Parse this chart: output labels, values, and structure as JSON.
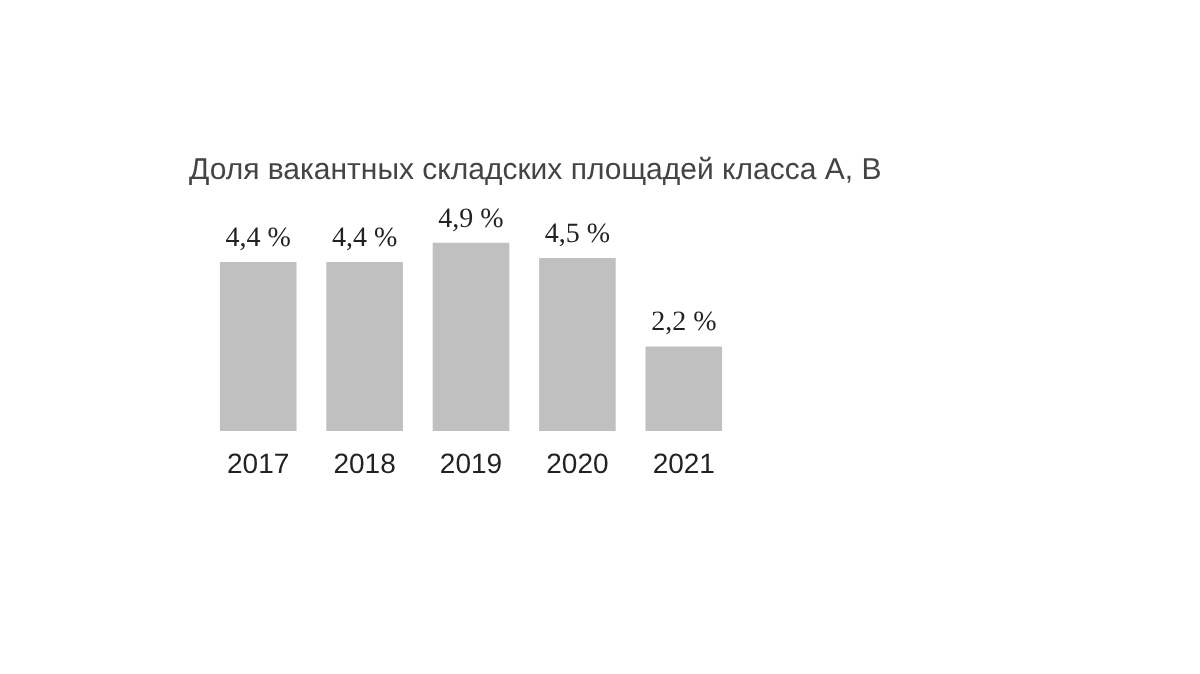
{
  "chart_data": {
    "type": "bar",
    "title": "Доля вакантных складских площадей класса А, В",
    "categories": [
      "2017",
      "2018",
      "2019",
      "2020",
      "2021"
    ],
    "values": [
      4.4,
      4.4,
      4.9,
      4.5,
      2.2
    ],
    "value_labels": [
      "4,4 %",
      "4,4 %",
      "4,9 %",
      "4,5 %",
      "2,2 %"
    ],
    "color": "#c0c0c0"
  }
}
